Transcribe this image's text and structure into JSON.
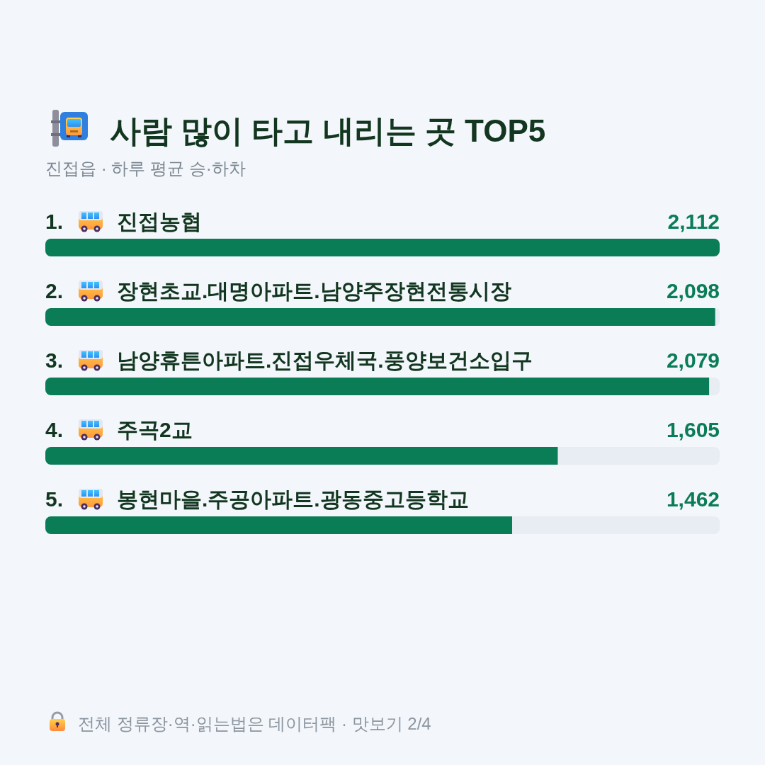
{
  "chart_data": {
    "type": "bar",
    "orientation": "horizontal",
    "title": "사람 많이 타고 내리는 곳 TOP5",
    "subtitle": "진접읍 · 하루 평균 승·하차",
    "categories": [
      "1. 진접농협",
      "2. 장현초교.대명아파트.남양주장현전통시장",
      "3. 남양휴튼아파트.진접우체국.풍양보건소입구",
      "4. 주곡2교",
      "5. 봉현마을.주공아파트.광동중고등학교"
    ],
    "values": [
      2112,
      2098,
      2079,
      1605,
      1462
    ],
    "value_labels": [
      "2,112",
      "2,098",
      "2,079",
      "1,605",
      "1,462"
    ],
    "color": "#0b7d56",
    "annotations": [
      "전체 정류장·역·읽는법은 데이터팩 · 맛보기 2/4"
    ]
  }
}
